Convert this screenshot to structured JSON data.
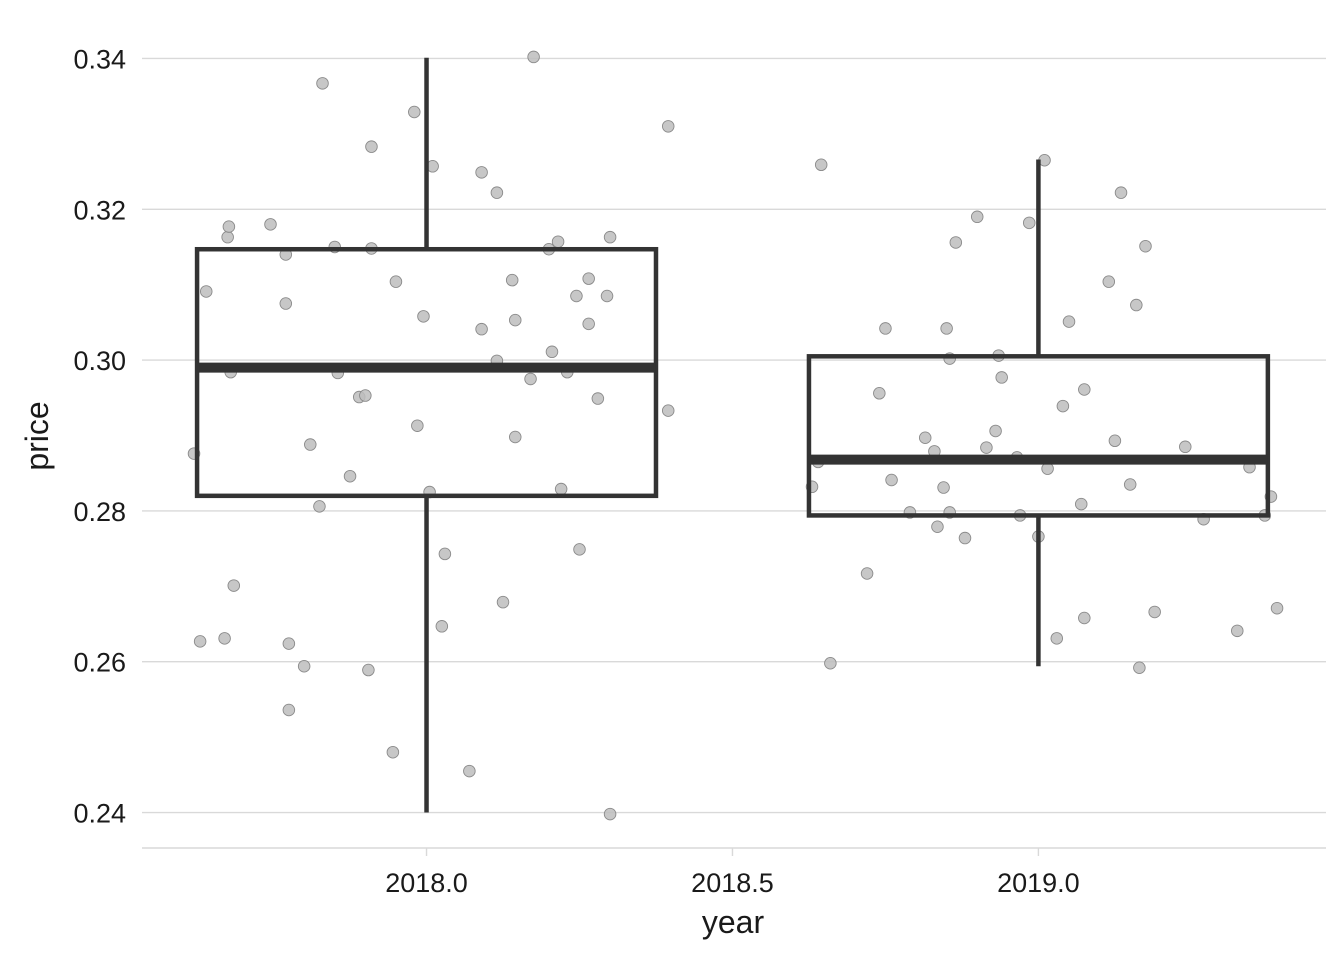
{
  "chart_data": {
    "type": "boxplot",
    "xlabel": "year",
    "ylabel": "price",
    "x_ticks": [
      "2018.0",
      "2018.5",
      "2019.0"
    ],
    "x_tick_values": [
      2018.0,
      2018.5,
      2019.0
    ],
    "y_ticks": [
      "0.24",
      "0.26",
      "0.28",
      "0.30",
      "0.32",
      "0.34"
    ],
    "y_tick_values": [
      0.24,
      0.26,
      0.28,
      0.3,
      0.32,
      0.34
    ],
    "xlim": [
      2017.535,
      2019.47
    ],
    "ylim": [
      0.2353,
      0.3447
    ],
    "grid": "horizontal",
    "colors": {
      "box": "#333333",
      "points": "#bdbdbd",
      "grid": "#d9d9d9"
    },
    "boxes": [
      {
        "x": 2018.0,
        "x_from": 2017.625,
        "x_to": 2018.375,
        "lower_whisker": 0.24,
        "q1": 0.282,
        "median": 0.299,
        "q3": 0.3147,
        "upper_whisker": 0.3401
      },
      {
        "x": 2019.0,
        "x_from": 2018.625,
        "x_to": 2019.375,
        "lower_whisker": 0.2594,
        "q1": 0.2794,
        "median": 0.2868,
        "q3": 0.3005,
        "upper_whisker": 0.3266
      }
    ],
    "points": [
      [
        2017.62,
        0.2876
      ],
      [
        2017.63,
        0.2627
      ],
      [
        2017.64,
        0.3091
      ],
      [
        2017.67,
        0.2631
      ],
      [
        2017.675,
        0.3163
      ],
      [
        2017.677,
        0.3177
      ],
      [
        2017.68,
        0.2984
      ],
      [
        2017.685,
        0.2701
      ],
      [
        2017.745,
        0.318
      ],
      [
        2017.77,
        0.3075
      ],
      [
        2017.77,
        0.314
      ],
      [
        2017.775,
        0.2624
      ],
      [
        2017.775,
        0.2536
      ],
      [
        2017.8,
        0.2594
      ],
      [
        2017.81,
        0.2888
      ],
      [
        2017.825,
        0.2806
      ],
      [
        2017.83,
        0.3367
      ],
      [
        2017.85,
        0.315
      ],
      [
        2017.855,
        0.2983
      ],
      [
        2017.875,
        0.2846
      ],
      [
        2017.89,
        0.2951
      ],
      [
        2017.9,
        0.2953
      ],
      [
        2017.905,
        0.2589
      ],
      [
        2017.91,
        0.3148
      ],
      [
        2017.91,
        0.3283
      ],
      [
        2017.945,
        0.248
      ],
      [
        2017.95,
        0.3104
      ],
      [
        2017.98,
        0.3329
      ],
      [
        2017.985,
        0.2913
      ],
      [
        2017.995,
        0.3058
      ],
      [
        2018.005,
        0.2825
      ],
      [
        2018.01,
        0.3257
      ],
      [
        2018.03,
        0.2743
      ],
      [
        2018.025,
        0.2647
      ],
      [
        2018.07,
        0.2455
      ],
      [
        2018.09,
        0.3041
      ],
      [
        2018.09,
        0.3249
      ],
      [
        2018.115,
        0.3222
      ],
      [
        2018.115,
        0.2999
      ],
      [
        2018.125,
        0.2679
      ],
      [
        2018.14,
        0.3106
      ],
      [
        2018.145,
        0.3053
      ],
      [
        2018.145,
        0.2898
      ],
      [
        2018.17,
        0.2975
      ],
      [
        2018.175,
        0.3402
      ],
      [
        2018.2,
        0.3147
      ],
      [
        2018.205,
        0.3011
      ],
      [
        2018.22,
        0.2829
      ],
      [
        2018.215,
        0.3157
      ],
      [
        2018.23,
        0.2984
      ],
      [
        2018.245,
        0.3085
      ],
      [
        2018.25,
        0.2749
      ],
      [
        2018.265,
        0.3048
      ],
      [
        2018.265,
        0.3108
      ],
      [
        2018.28,
        0.2949
      ],
      [
        2018.295,
        0.3085
      ],
      [
        2018.3,
        0.3163
      ],
      [
        2018.3,
        0.2398
      ],
      [
        2018.395,
        0.331
      ],
      [
        2018.395,
        0.2933
      ],
      [
        2018.63,
        0.2832
      ],
      [
        2018.64,
        0.2865
      ],
      [
        2018.645,
        0.3259
      ],
      [
        2018.66,
        0.2598
      ],
      [
        2018.72,
        0.2717
      ],
      [
        2018.74,
        0.2956
      ],
      [
        2018.75,
        0.3042
      ],
      [
        2018.76,
        0.2841
      ],
      [
        2018.79,
        0.2798
      ],
      [
        2018.815,
        0.2897
      ],
      [
        2018.83,
        0.2879
      ],
      [
        2018.835,
        0.2779
      ],
      [
        2018.845,
        0.2831
      ],
      [
        2018.85,
        0.3042
      ],
      [
        2018.855,
        0.3002
      ],
      [
        2018.855,
        0.2798
      ],
      [
        2018.865,
        0.3156
      ],
      [
        2018.88,
        0.2764
      ],
      [
        2018.9,
        0.319
      ],
      [
        2018.915,
        0.2884
      ],
      [
        2018.93,
        0.2906
      ],
      [
        2018.935,
        0.3006
      ],
      [
        2018.94,
        0.2977
      ],
      [
        2018.965,
        0.2871
      ],
      [
        2018.97,
        0.2794
      ],
      [
        2018.985,
        0.3182
      ],
      [
        2019.0,
        0.2766
      ],
      [
        2019.01,
        0.3265
      ],
      [
        2019.015,
        0.2856
      ],
      [
        2019.03,
        0.2631
      ],
      [
        2019.04,
        0.2939
      ],
      [
        2019.05,
        0.3051
      ],
      [
        2019.07,
        0.2809
      ],
      [
        2019.075,
        0.2961
      ],
      [
        2019.075,
        0.2658
      ],
      [
        2019.115,
        0.3104
      ],
      [
        2019.125,
        0.2893
      ],
      [
        2019.135,
        0.3222
      ],
      [
        2019.15,
        0.2835
      ],
      [
        2019.16,
        0.3073
      ],
      [
        2019.165,
        0.2592
      ],
      [
        2019.175,
        0.3151
      ],
      [
        2019.19,
        0.2666
      ],
      [
        2019.24,
        0.2885
      ],
      [
        2019.27,
        0.2789
      ],
      [
        2019.325,
        0.2641
      ],
      [
        2019.345,
        0.2858
      ],
      [
        2019.37,
        0.2794
      ],
      [
        2019.38,
        0.2819
      ],
      [
        2019.39,
        0.2671
      ]
    ]
  }
}
